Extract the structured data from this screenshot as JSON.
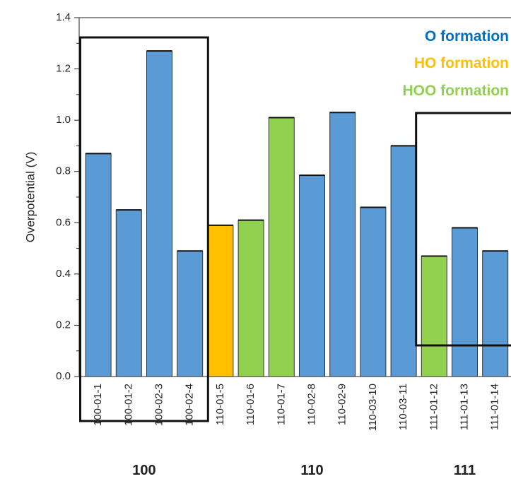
{
  "chart_data": {
    "type": "bar",
    "ylabel": "Overpotential (V)",
    "xlabel": "",
    "ylim": [
      0,
      1.4
    ],
    "yticks": [
      "0.0",
      "0.2",
      "0.4",
      "0.6",
      "0.8",
      "1.0",
      "1.2",
      "1.4"
    ],
    "categories": [
      "100-01-1",
      "100-01-2",
      "100-02-3",
      "100-02-4",
      "110-01-5",
      "110-01-6",
      "110-01-7",
      "110-02-8",
      "110-02-9",
      "110-03-10",
      "110-03-11",
      "111-01-12",
      "111-01-13",
      "111-01-14"
    ],
    "values": [
      0.87,
      0.65,
      1.27,
      0.49,
      0.59,
      0.61,
      1.01,
      0.785,
      1.03,
      0.66,
      0.9,
      0.47,
      0.58,
      0.49
    ],
    "bar_types": [
      "O",
      "O",
      "O",
      "O",
      "HO",
      "HOO",
      "HOO",
      "O",
      "O",
      "O",
      "O",
      "HOO",
      "O",
      "O"
    ],
    "legend": [
      {
        "key": "O",
        "label": "O formation",
        "color": "#0070C0"
      },
      {
        "key": "HO",
        "label": "HO formation",
        "color": "#FFC000"
      },
      {
        "key": "HOO",
        "label": "HOO formation",
        "color": "#92D050"
      }
    ],
    "bar_colors": {
      "O": "#5B9BD5",
      "HO": "#FFC000",
      "HOO": "#92D050"
    },
    "groups": [
      {
        "label": "100",
        "first": 0,
        "last": 3
      },
      {
        "label": "110",
        "first": 4,
        "last": 10
      },
      {
        "label": "111",
        "first": 11,
        "last": 13
      }
    ]
  }
}
